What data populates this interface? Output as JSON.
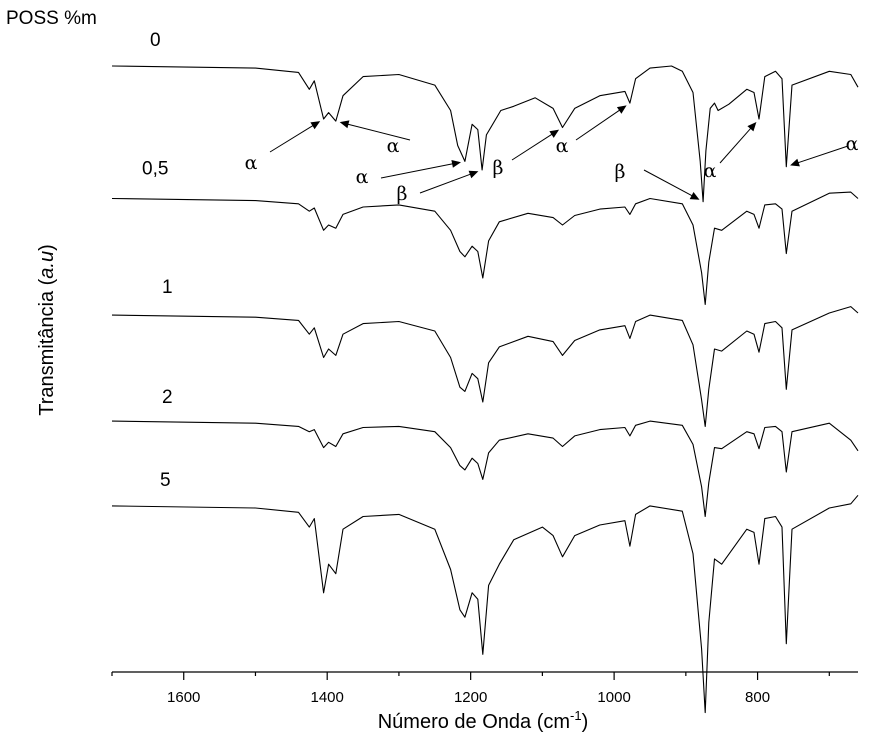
{
  "chart_data": {
    "type": "line",
    "title": "",
    "legend_title": "POSS %m",
    "xlabel": "Número de Onda (cm",
    "xlabel_sup": "-1",
    "xlabel_tail": ")",
    "ylabel_prefix": "Transmitância (",
    "ylabel_italic": "a.u",
    "ylabel_suffix": ")",
    "x_reversed": true,
    "xlim": [
      1700,
      660
    ],
    "x_ticks": [
      1600,
      1400,
      1200,
      1000,
      800
    ],
    "x_tick_labels": [
      "1600",
      "1400",
      "1200",
      "1000",
      "800"
    ],
    "grid": false,
    "series": [
      {
        "name": "0",
        "baseline": 0.0,
        "x": [
          1700,
          1500,
          1440,
          1425,
          1418,
          1405,
          1398,
          1388,
          1378,
          1350,
          1300,
          1250,
          1228,
          1218,
          1208,
          1198,
          1190,
          1184,
          1178,
          1165,
          1158,
          1140,
          1110,
          1085,
          1072,
          1055,
          1020,
          985,
          978,
          970,
          950,
          920,
          905,
          890,
          880,
          876,
          872,
          866,
          860,
          855,
          840,
          815,
          805,
          798,
          790,
          775,
          766,
          760,
          752,
          700,
          670,
          660
        ],
        "y": [
          0.0,
          -0.02,
          -0.06,
          -0.22,
          -0.14,
          -0.5,
          -0.44,
          -0.52,
          -0.28,
          -0.1,
          -0.08,
          -0.18,
          -0.42,
          -0.75,
          -0.9,
          -0.55,
          -0.6,
          -0.98,
          -0.65,
          -0.5,
          -0.42,
          -0.38,
          -0.3,
          -0.4,
          -0.58,
          -0.4,
          -0.28,
          -0.24,
          -0.35,
          -0.12,
          -0.02,
          0.0,
          -0.05,
          -0.25,
          -0.9,
          -1.28,
          -0.8,
          -0.4,
          -0.35,
          -0.42,
          -0.36,
          -0.22,
          -0.25,
          -0.5,
          -0.1,
          -0.05,
          -0.12,
          -0.95,
          -0.18,
          -0.05,
          -0.08,
          -0.2
        ]
      },
      {
        "name": "0,5",
        "baseline": -1.25,
        "x": [
          1700,
          1500,
          1440,
          1425,
          1418,
          1405,
          1398,
          1388,
          1378,
          1350,
          1300,
          1250,
          1228,
          1215,
          1208,
          1198,
          1190,
          1183,
          1175,
          1160,
          1120,
          1085,
          1072,
          1055,
          1020,
          985,
          978,
          970,
          950,
          905,
          890,
          878,
          873,
          868,
          860,
          850,
          815,
          805,
          798,
          790,
          775,
          766,
          760,
          752,
          700,
          670,
          660
        ],
        "y": [
          0.0,
          -0.02,
          -0.05,
          -0.12,
          -0.09,
          -0.3,
          -0.25,
          -0.28,
          -0.15,
          -0.08,
          -0.06,
          -0.12,
          -0.3,
          -0.5,
          -0.55,
          -0.45,
          -0.5,
          -0.75,
          -0.4,
          -0.22,
          -0.14,
          -0.18,
          -0.25,
          -0.16,
          -0.1,
          -0.08,
          -0.15,
          -0.05,
          0.0,
          -0.05,
          -0.25,
          -0.7,
          -1.0,
          -0.6,
          -0.28,
          -0.3,
          -0.12,
          -0.15,
          -0.28,
          -0.06,
          -0.05,
          -0.1,
          -0.52,
          -0.12,
          0.05,
          0.06,
          0.0
        ]
      },
      {
        "name": "1",
        "baseline": -2.35,
        "x": [
          1700,
          1500,
          1440,
          1425,
          1418,
          1405,
          1398,
          1388,
          1378,
          1350,
          1300,
          1250,
          1228,
          1215,
          1208,
          1198,
          1190,
          1183,
          1175,
          1160,
          1120,
          1085,
          1072,
          1055,
          1020,
          985,
          978,
          970,
          950,
          905,
          890,
          878,
          873,
          868,
          860,
          850,
          815,
          805,
          798,
          790,
          775,
          766,
          760,
          752,
          700,
          670,
          660
        ],
        "y": [
          0.0,
          -0.02,
          -0.05,
          -0.18,
          -0.12,
          -0.4,
          -0.32,
          -0.38,
          -0.18,
          -0.08,
          -0.06,
          -0.15,
          -0.4,
          -0.68,
          -0.72,
          -0.55,
          -0.6,
          -0.82,
          -0.45,
          -0.3,
          -0.2,
          -0.25,
          -0.38,
          -0.24,
          -0.14,
          -0.1,
          -0.22,
          -0.06,
          0.0,
          -0.05,
          -0.28,
          -0.8,
          -1.05,
          -0.7,
          -0.32,
          -0.34,
          -0.15,
          -0.18,
          -0.35,
          -0.08,
          -0.06,
          -0.12,
          -0.7,
          -0.14,
          0.02,
          0.08,
          0.02
        ]
      },
      {
        "name": "2",
        "baseline": -3.35,
        "x": [
          1700,
          1500,
          1440,
          1425,
          1418,
          1405,
          1398,
          1388,
          1378,
          1350,
          1300,
          1250,
          1228,
          1215,
          1208,
          1198,
          1190,
          1183,
          1175,
          1160,
          1120,
          1085,
          1072,
          1055,
          1020,
          985,
          978,
          970,
          950,
          905,
          890,
          878,
          873,
          868,
          860,
          850,
          815,
          805,
          798,
          790,
          775,
          766,
          760,
          752,
          700,
          670,
          660
        ],
        "y": [
          0.0,
          -0.02,
          -0.05,
          -0.1,
          -0.08,
          -0.25,
          -0.2,
          -0.24,
          -0.12,
          -0.06,
          -0.05,
          -0.1,
          -0.25,
          -0.42,
          -0.46,
          -0.35,
          -0.4,
          -0.55,
          -0.3,
          -0.18,
          -0.12,
          -0.16,
          -0.24,
          -0.14,
          -0.08,
          -0.06,
          -0.14,
          -0.04,
          0.0,
          -0.04,
          -0.22,
          -0.62,
          -0.9,
          -0.58,
          -0.25,
          -0.26,
          -0.1,
          -0.12,
          -0.26,
          -0.06,
          -0.05,
          -0.1,
          -0.48,
          -0.1,
          -0.02,
          -0.18,
          -0.28
        ]
      },
      {
        "name": "5",
        "baseline": -4.15,
        "x": [
          1700,
          1500,
          1440,
          1425,
          1418,
          1405,
          1398,
          1388,
          1378,
          1350,
          1300,
          1250,
          1228,
          1215,
          1208,
          1198,
          1190,
          1183,
          1175,
          1160,
          1140,
          1100,
          1085,
          1072,
          1055,
          1020,
          985,
          978,
          970,
          950,
          905,
          890,
          878,
          873,
          868,
          860,
          850,
          815,
          805,
          798,
          790,
          775,
          766,
          760,
          752,
          700,
          670,
          660
        ],
        "y": [
          0.0,
          -0.02,
          -0.06,
          -0.2,
          -0.12,
          -0.82,
          -0.55,
          -0.64,
          -0.22,
          -0.1,
          -0.08,
          -0.22,
          -0.6,
          -0.98,
          -1.05,
          -0.82,
          -0.88,
          -1.4,
          -0.75,
          -0.55,
          -0.32,
          -0.2,
          -0.28,
          -0.48,
          -0.28,
          -0.18,
          -0.14,
          -0.38,
          -0.08,
          0.0,
          -0.05,
          -0.45,
          -1.35,
          -1.95,
          -1.1,
          -0.5,
          -0.55,
          -0.22,
          -0.25,
          -0.55,
          -0.12,
          -0.1,
          -0.2,
          -1.3,
          -0.22,
          -0.02,
          0.02,
          0.1
        ]
      }
    ],
    "annotations": [
      {
        "text": "α",
        "arrow_to_x": 1405,
        "arrow_to_series": 0
      },
      {
        "text": "α",
        "arrow_to_x": 1388,
        "arrow_to_series": 0
      },
      {
        "text": "α",
        "arrow_to_x": 1208,
        "arrow_to_series": 0
      },
      {
        "text": "β",
        "arrow_to_x": 1184,
        "arrow_to_series": 0
      },
      {
        "text": "β",
        "arrow_to_x": 1072,
        "arrow_to_series": 0
      },
      {
        "text": "α",
        "arrow_to_x": 978,
        "arrow_to_series": 0
      },
      {
        "text": "β",
        "arrow_to_x": 876,
        "arrow_to_series": 0
      },
      {
        "text": "α",
        "arrow_to_x": 798,
        "arrow_to_series": 0
      },
      {
        "text": "α",
        "arrow_to_x": 760,
        "arrow_to_series": 0
      }
    ]
  }
}
